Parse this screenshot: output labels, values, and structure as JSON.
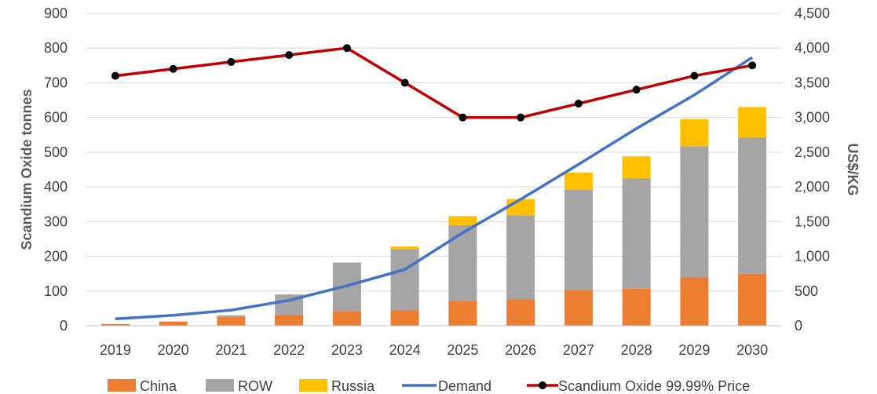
{
  "chart_data": {
    "type": "bar",
    "title": "",
    "categories": [
      "2019",
      "2020",
      "2021",
      "2022",
      "2023",
      "2024",
      "2025",
      "2026",
      "2027",
      "2028",
      "2029",
      "2030"
    ],
    "series": [
      {
        "name": "China",
        "kind": "stacked-bar",
        "axis": "left",
        "color": "#ed7d31",
        "values": [
          5,
          12,
          25,
          32,
          42,
          45,
          72,
          76,
          103,
          107,
          140,
          150
        ]
      },
      {
        "name": "ROW",
        "kind": "stacked-bar",
        "axis": "left",
        "color": "#a5a5a5",
        "values": [
          0,
          0,
          5,
          58,
          140,
          176,
          218,
          242,
          290,
          318,
          377,
          393
        ]
      },
      {
        "name": "Russia",
        "kind": "stacked-bar",
        "axis": "left",
        "color": "#ffc000",
        "values": [
          0,
          0,
          0,
          0,
          0,
          7,
          26,
          47,
          48,
          63,
          78,
          87
        ]
      },
      {
        "name": "Demand",
        "kind": "line",
        "axis": "left",
        "color": "#4472c4",
        "values": [
          20,
          30,
          45,
          73,
          115,
          162,
          268,
          364,
          465,
          568,
          665,
          773
        ]
      },
      {
        "name": "Scandium Oxide 99.99% Price",
        "kind": "line-markers",
        "axis": "right",
        "color": "#c00000",
        "values": [
          3600,
          3700,
          3800,
          3900,
          4000,
          3500,
          3000,
          3000,
          3200,
          3400,
          3600,
          3750
        ]
      }
    ],
    "y_left": {
      "label": "Scandium Oxide tonnes",
      "min": 0,
      "max": 900,
      "step": 100,
      "tick_labels": [
        "0",
        "100",
        "200",
        "300",
        "400",
        "500",
        "600",
        "700",
        "800",
        "900"
      ]
    },
    "y_right": {
      "label": "US$/KG",
      "min": 0,
      "max": 4500,
      "step": 500,
      "tick_labels": [
        "0",
        "500",
        "1,000",
        "1,500",
        "2,000",
        "2,500",
        "3,000",
        "3,500",
        "4,000",
        "4,500"
      ]
    },
    "grid": true,
    "legend_position": "bottom"
  }
}
